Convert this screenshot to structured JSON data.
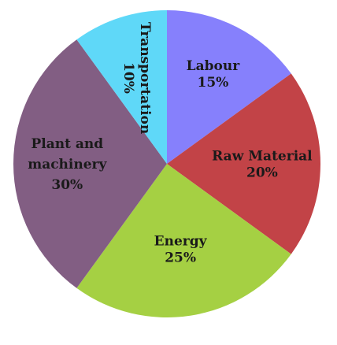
{
  "chart_data": {
    "type": "pie",
    "title": "",
    "slices": [
      {
        "label": "Labour",
        "label_lines": [
          "Labour"
        ],
        "percent_label": "15%",
        "value": 15,
        "color": "#8680fc"
      },
      {
        "label": "Raw Material",
        "label_lines": [
          "Raw Material"
        ],
        "percent_label": "20%",
        "value": 20,
        "color": "#c24347"
      },
      {
        "label": "Energy",
        "label_lines": [
          "Energy"
        ],
        "percent_label": "25%",
        "value": 25,
        "color": "#a5d043"
      },
      {
        "label": "Plant and machinery",
        "label_lines": [
          "Plant and",
          "machinery"
        ],
        "percent_label": "30%",
        "value": 30,
        "color": "#825e83"
      },
      {
        "label": "Transportation",
        "label_lines": [
          "Transportation"
        ],
        "percent_label": "10%",
        "value": 10,
        "color": "#5fd8f8",
        "label_rotated": true
      }
    ],
    "start_angle_deg": 90,
    "direction": "clockwise",
    "legend": "none"
  }
}
